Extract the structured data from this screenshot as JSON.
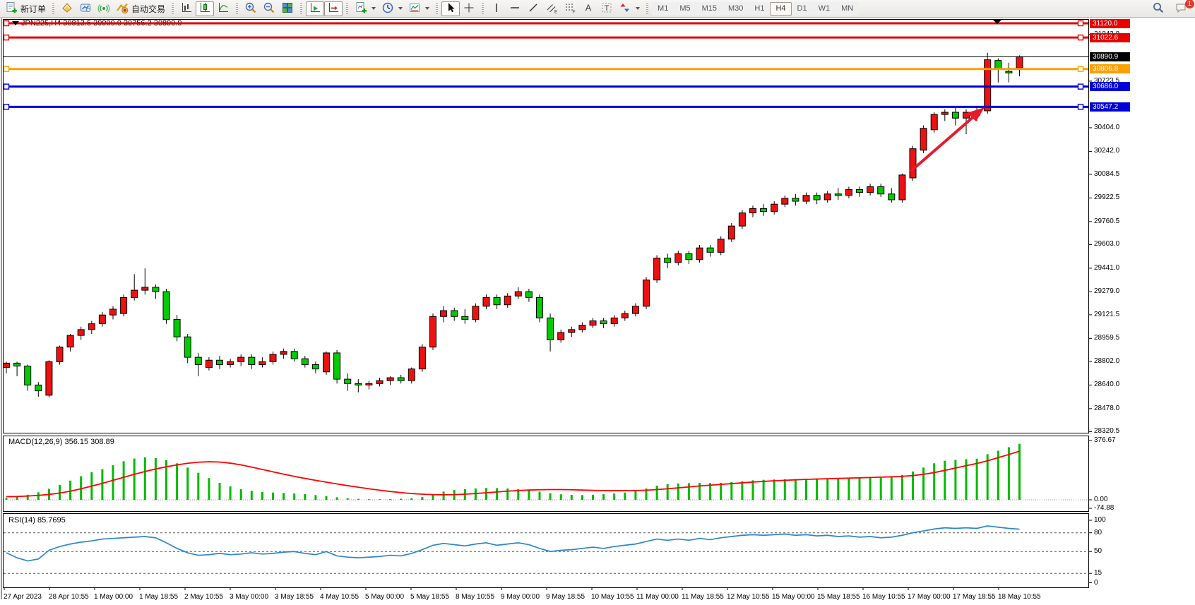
{
  "toolbar": {
    "new_order": "新订单",
    "auto_trading": "自动交易",
    "timeframes": [
      "M1",
      "M5",
      "M15",
      "M30",
      "H1",
      "H4",
      "D1",
      "W1",
      "MN"
    ],
    "active_timeframe": "H4",
    "notification_count": "1"
  },
  "chart": {
    "title": "JPN225,H4 30813.5 30900.0 30756.2 30890.9",
    "symbol": "JPN225",
    "period": "H4",
    "ohlc": {
      "open": "30813.5",
      "high": "30900.0",
      "low": "30756.2",
      "close": "30890.9"
    },
    "current_price": {
      "price": 30890.9,
      "label": "30890.9",
      "color": "#000000"
    },
    "price_ticks": [
      "31043.8",
      "30723.5",
      "30404.0",
      "30242.0",
      "30084.5",
      "29922.5",
      "29760.5",
      "29603.0",
      "29441.0",
      "29279.0",
      "29121.5",
      "28959.5",
      "28802.0",
      "28640.0",
      "28478.0",
      "28320.5"
    ],
    "hlines": [
      {
        "name": "resistance-upper",
        "price": 31120.0,
        "label": "31120.0",
        "color": "#e60000"
      },
      {
        "name": "resistance-lower",
        "price": 31022.6,
        "label": "31022.6",
        "color": "#e60000"
      },
      {
        "name": "orange-level",
        "price": 30806.8,
        "label": "30806.8",
        "color": "#ff9f00"
      },
      {
        "name": "support-upper",
        "price": 30686.0,
        "label": "30686.0",
        "color": "#0000d9"
      },
      {
        "name": "support-lower",
        "price": 30547.2,
        "label": "30547.2",
        "color": "#0000d9"
      }
    ],
    "time_labels": [
      "27 Apr 2023",
      "28 Apr 10:55",
      "1 May 00:00",
      "1 May 18:55",
      "2 May 10:55",
      "3 May 00:00",
      "3 May 18:55",
      "4 May 10:55",
      "5 May 00:00",
      "5 May 18:55",
      "8 May 10:55",
      "9 May 00:00",
      "9 May 18:55",
      "10 May 10:55",
      "11 May 00:00",
      "11 May 18:55",
      "12 May 10:55",
      "15 May 00:00",
      "15 May 18:55",
      "16 May 10:55",
      "17 May 00:00",
      "17 May 18:55",
      "18 May 10:55"
    ],
    "colors": {
      "up": "#ee1111",
      "down": "#00cc00",
      "outline": "#000000",
      "arrow": "#e8192c"
    },
    "annotation_arrow": {
      "description": "red arrow pointing up-right toward breakout",
      "color": "#e8192c"
    },
    "candles": [
      [
        28760,
        28800,
        28720,
        28790
      ],
      [
        28790,
        28800,
        28700,
        28770
      ],
      [
        28770,
        28780,
        28600,
        28640
      ],
      [
        28640,
        28660,
        28560,
        28600
      ],
      [
        28570,
        28810,
        28555,
        28800
      ],
      [
        28800,
        28910,
        28780,
        28900
      ],
      [
        28900,
        28990,
        28870,
        28980
      ],
      [
        28980,
        29040,
        28950,
        29020
      ],
      [
        29020,
        29080,
        28990,
        29060
      ],
      [
        29060,
        29140,
        29040,
        29120
      ],
      [
        29120,
        29180,
        29090,
        29160
      ],
      [
        29130,
        29260,
        29110,
        29240
      ],
      [
        29240,
        29400,
        29220,
        29290
      ],
      [
        29290,
        29440,
        29260,
        29310
      ],
      [
        29310,
        29330,
        29230,
        29280
      ],
      [
        29280,
        29300,
        29060,
        29090
      ],
      [
        29090,
        29120,
        28940,
        28970
      ],
      [
        28970,
        28990,
        28790,
        28830
      ],
      [
        28830,
        28860,
        28700,
        28780
      ],
      [
        28760,
        28830,
        28740,
        28810
      ],
      [
        28810,
        28840,
        28750,
        28780
      ],
      [
        28780,
        28820,
        28760,
        28800
      ],
      [
        28800,
        28850,
        28770,
        28830
      ],
      [
        28830,
        28850,
        28750,
        28780
      ],
      [
        28780,
        28830,
        28760,
        28800
      ],
      [
        28800,
        28870,
        28780,
        28850
      ],
      [
        28850,
        28890,
        28820,
        28870
      ],
      [
        28870,
        28890,
        28800,
        28820
      ],
      [
        28820,
        28840,
        28760,
        28780
      ],
      [
        28780,
        28800,
        28720,
        28750
      ],
      [
        28730,
        28870,
        28710,
        28860
      ],
      [
        28860,
        28880,
        28650,
        28680
      ],
      [
        28680,
        28720,
        28600,
        28650
      ],
      [
        28650,
        28680,
        28590,
        28640
      ],
      [
        28640,
        28670,
        28610,
        28650
      ],
      [
        28650,
        28690,
        28630,
        28670
      ],
      [
        28670,
        28700,
        28640,
        28690
      ],
      [
        28690,
        28710,
        28650,
        28670
      ],
      [
        28670,
        28760,
        28650,
        28750
      ],
      [
        28750,
        28920,
        28730,
        28900
      ],
      [
        28900,
        29130,
        28880,
        29110
      ],
      [
        29110,
        29180,
        29070,
        29150
      ],
      [
        29150,
        29170,
        29080,
        29110
      ],
      [
        29110,
        29160,
        29060,
        29090
      ],
      [
        29090,
        29200,
        29070,
        29180
      ],
      [
        29180,
        29260,
        29160,
        29240
      ],
      [
        29240,
        29260,
        29160,
        29190
      ],
      [
        29190,
        29270,
        29170,
        29250
      ],
      [
        29250,
        29310,
        29230,
        29280
      ],
      [
        29280,
        29300,
        29210,
        29240
      ],
      [
        29240,
        29260,
        29070,
        29100
      ],
      [
        29100,
        29130,
        28870,
        28950
      ],
      [
        28950,
        29020,
        28930,
        29000
      ],
      [
        29000,
        29040,
        28970,
        29020
      ],
      [
        29020,
        29070,
        29000,
        29050
      ],
      [
        29050,
        29100,
        29030,
        29080
      ],
      [
        29080,
        29100,
        29030,
        29060
      ],
      [
        29060,
        29120,
        29040,
        29100
      ],
      [
        29100,
        29150,
        29080,
        29130
      ],
      [
        29130,
        29200,
        29110,
        29180
      ],
      [
        29180,
        29380,
        29160,
        29360
      ],
      [
        29360,
        29530,
        29340,
        29510
      ],
      [
        29510,
        29540,
        29440,
        29480
      ],
      [
        29480,
        29560,
        29460,
        29540
      ],
      [
        29540,
        29560,
        29470,
        29500
      ],
      [
        29500,
        29600,
        29480,
        29580
      ],
      [
        29580,
        29600,
        29520,
        29550
      ],
      [
        29550,
        29660,
        29530,
        29640
      ],
      [
        29640,
        29750,
        29620,
        29730
      ],
      [
        29730,
        29840,
        29710,
        29820
      ],
      [
        29820,
        29870,
        29790,
        29850
      ],
      [
        29850,
        29880,
        29800,
        29830
      ],
      [
        29830,
        29900,
        29810,
        29880
      ],
      [
        29880,
        29940,
        29860,
        29920
      ],
      [
        29920,
        29950,
        29870,
        29900
      ],
      [
        29900,
        29960,
        29880,
        29940
      ],
      [
        29940,
        29960,
        29880,
        29910
      ],
      [
        29910,
        29970,
        29890,
        29950
      ],
      [
        29950,
        29990,
        29910,
        29940
      ],
      [
        29940,
        30000,
        29920,
        29980
      ],
      [
        29980,
        30000,
        29930,
        29960
      ],
      [
        29960,
        30020,
        29940,
        30000
      ],
      [
        30000,
        30020,
        29930,
        29950
      ],
      [
        29950,
        29990,
        29890,
        29910
      ],
      [
        29910,
        30090,
        29890,
        30080
      ],
      [
        30060,
        30280,
        30040,
        30260
      ],
      [
        30250,
        30420,
        30230,
        30400
      ],
      [
        30390,
        30510,
        30370,
        30495
      ],
      [
        30495,
        30530,
        30450,
        30510
      ],
      [
        30510,
        30540,
        30420,
        30470
      ],
      [
        30470,
        30530,
        30360,
        30510
      ],
      [
        30510,
        30545,
        30450,
        30490
      ],
      [
        30520,
        30918,
        30500,
        30870
      ],
      [
        30865,
        30880,
        30714,
        30807
      ],
      [
        30790,
        30850,
        30715,
        30780
      ],
      [
        30813.5,
        30900,
        30756.2,
        30890.9
      ]
    ]
  },
  "macd": {
    "label": "MACD(12,26,9) 356.15 308.89",
    "params": "12,26,9",
    "value": "356.15",
    "signal_value": "308.89",
    "axis": [
      "376.67",
      "0.00",
      "-74.88"
    ],
    "hist_color": "#00bb00",
    "signal_color": "#ff0000",
    "hist": [
      12,
      20,
      32,
      48,
      70,
      95,
      122,
      150,
      175,
      195,
      220,
      245,
      262,
      270,
      265,
      252,
      232,
      205,
      172,
      138,
      108,
      85,
      68,
      57,
      50,
      46,
      43,
      40,
      36,
      30,
      24,
      16,
      10,
      6,
      4,
      4,
      5,
      7,
      10,
      18,
      35,
      52,
      62,
      68,
      72,
      75,
      74,
      72,
      68,
      62,
      52,
      42,
      35,
      31,
      30,
      32,
      36,
      40,
      46,
      56,
      72,
      90,
      100,
      104,
      106,
      108,
      107,
      108,
      112,
      118,
      124,
      127,
      129,
      131,
      132,
      134,
      133,
      135,
      137,
      139,
      141,
      142,
      144,
      147,
      158,
      180,
      205,
      232,
      248,
      254,
      258,
      261,
      290,
      312,
      334,
      356.15
    ],
    "signal": [
      20,
      21,
      24,
      28,
      34,
      43,
      55,
      70,
      87,
      105,
      124,
      143,
      162,
      180,
      196,
      210,
      222,
      232,
      239,
      242,
      240,
      233,
      222,
      208,
      193,
      178,
      163,
      149,
      136,
      124,
      112,
      101,
      90,
      80,
      70,
      61,
      53,
      46,
      40,
      36,
      33,
      32,
      33,
      36,
      40,
      45,
      50,
      55,
      59,
      62,
      64,
      65,
      65,
      64,
      62,
      60,
      59,
      58,
      58,
      59,
      61,
      65,
      70,
      76,
      82,
      88,
      93,
      98,
      103,
      108,
      113,
      117,
      121,
      124,
      127,
      130,
      132,
      134,
      136,
      138,
      140,
      142,
      144,
      146,
      149,
      154,
      162,
      173,
      187,
      202,
      217,
      231,
      248,
      268,
      288,
      308.89
    ]
  },
  "rsi": {
    "label": "RSI(14) 85.7695",
    "value": "85.7695",
    "axis": [
      "100",
      "80",
      "50",
      "15",
      "0"
    ],
    "levels": [
      80,
      50,
      15
    ],
    "line_color": "#2a85cd",
    "values": [
      48,
      40,
      35,
      38,
      52,
      58,
      62,
      65,
      67,
      70,
      71,
      72,
      73,
      74,
      72,
      64,
      55,
      48,
      44,
      45,
      47,
      45,
      46,
      48,
      46,
      47,
      49,
      50,
      47,
      45,
      50,
      43,
      41,
      40,
      41,
      42,
      44,
      43,
      47,
      53,
      60,
      63,
      61,
      59,
      62,
      64,
      60,
      62,
      64,
      61,
      55,
      50,
      52,
      53,
      55,
      57,
      55,
      58,
      60,
      62,
      66,
      70,
      68,
      70,
      68,
      71,
      69,
      72,
      74,
      76,
      77,
      76,
      77,
      78,
      76,
      77,
      75,
      76,
      74,
      75,
      73,
      74,
      72,
      73,
      76,
      80,
      83,
      86,
      88,
      87,
      88,
      87,
      91,
      89,
      87,
      85.77
    ]
  }
}
